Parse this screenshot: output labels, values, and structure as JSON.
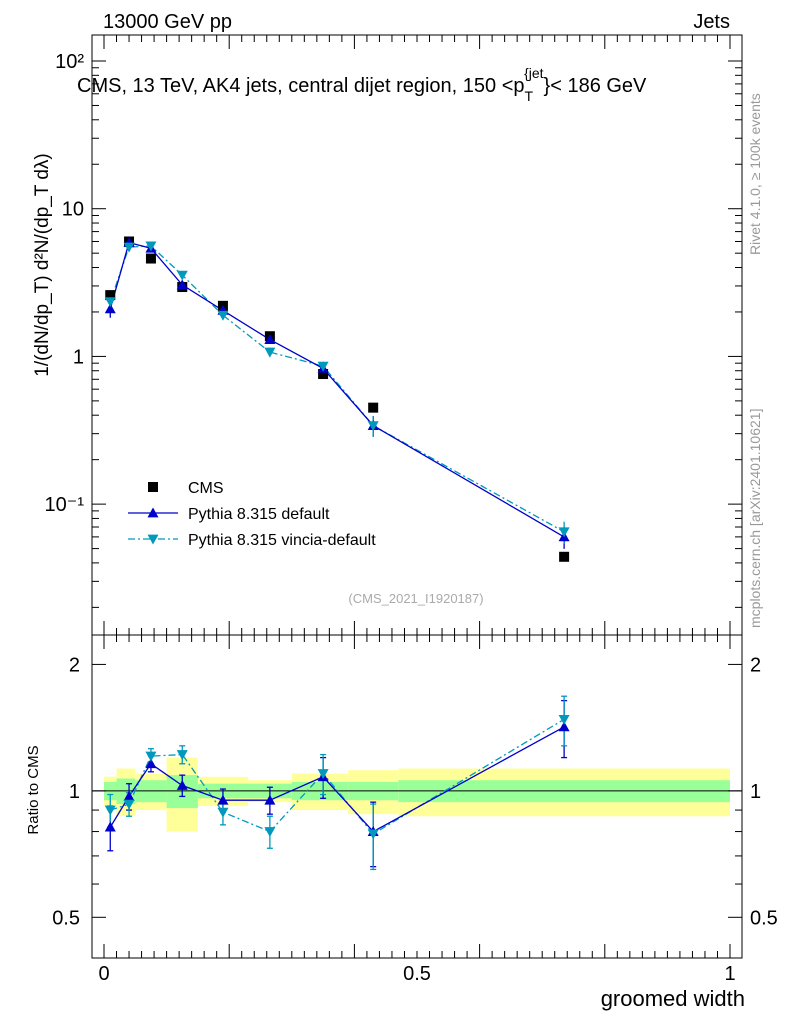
{
  "header": {
    "left": "13000 GeV pp",
    "right": "Jets"
  },
  "side_labels": {
    "rivet": "Rivet 4.1.0, ≥ 100k events",
    "mcplots": "mcplots.cern.ch [arXiv:2401.10621]"
  },
  "chart_data": {
    "type": "scatter",
    "title": "CMS, 13 TeV, AK4 jets, central dijet region, 150 <p_T^{jet}< 186 GeV",
    "title_parts": {
      "main": "CMS, 13 TeV, AK4 jets, central dijet region, 150 <p",
      "sub": "T",
      "sup": "{jet",
      "tail": "}< 186 GeV"
    },
    "analysis_id": "(CMS_2021_I1920187)",
    "xlabel": "groomed width",
    "ylabel_top": "1/(dN/dp_T) d²N/(dp_T dλ)",
    "ylabel_bottom": "Ratio to CMS",
    "xlim": [
      0,
      1
    ],
    "ylim_top": [
      0.013,
      150
    ],
    "ylim_bottom": [
      0.4,
      2.35
    ],
    "y_scale_top": "log",
    "y_scale_bottom": "log",
    "x_ticks": [
      "0",
      "0.5",
      "1"
    ],
    "y_ticks_top": [
      "10⁻¹",
      "1",
      "10",
      "10²"
    ],
    "y_ticks_bottom": [
      "0.5",
      "1",
      "2"
    ],
    "legend": [
      "CMS",
      "Pythia 8.315 default",
      "Pythia 8.315 vincia-default"
    ],
    "legend_position": "lower-left",
    "colors": {
      "cms": "#000000",
      "default": "#0000cc",
      "vincia": "#0099bb",
      "band_inner": "#99ff99",
      "band_outer": "#ffff99"
    },
    "bins": [
      [
        0.0,
        0.02
      ],
      [
        0.02,
        0.05
      ],
      [
        0.05,
        0.1
      ],
      [
        0.1,
        0.15
      ],
      [
        0.15,
        0.23
      ],
      [
        0.23,
        0.3
      ],
      [
        0.3,
        0.39
      ],
      [
        0.39,
        0.47
      ],
      [
        0.47,
        1.0
      ]
    ],
    "x": [
      0.01,
      0.04,
      0.075,
      0.125,
      0.19,
      0.265,
      0.35,
      0.43,
      0.735
    ],
    "series": [
      {
        "name": "CMS",
        "values": [
          2.6,
          6.0,
          4.6,
          2.95,
          2.2,
          1.37,
          0.76,
          0.45,
          0.044
        ],
        "band_inner_rel": [
          0.05,
          0.07,
          0.06,
          0.09,
          0.04,
          0.04,
          0.05,
          0.05,
          0.06
        ],
        "band_outer_rel": [
          0.08,
          0.13,
          0.1,
          0.2,
          0.08,
          0.06,
          0.1,
          0.12,
          0.13
        ]
      },
      {
        "name": "Pythia 8.315 default",
        "values": [
          2.1,
          5.9,
          5.4,
          3.05,
          2.05,
          1.3,
          0.83,
          0.34,
          0.06
        ],
        "errors_rel": [
          0.13,
          0.06,
          0.05,
          0.06,
          0.05,
          0.06,
          0.07,
          0.16,
          0.17
        ],
        "ratio": [
          0.82,
          0.97,
          1.16,
          1.03,
          0.95,
          0.95,
          1.08,
          0.8,
          1.42
        ],
        "ratio_err": [
          0.1,
          0.07,
          0.05,
          0.06,
          0.06,
          0.07,
          0.12,
          0.14,
          0.22
        ]
      },
      {
        "name": "Pythia 8.315 vincia-default",
        "values": [
          2.35,
          5.5,
          5.6,
          3.55,
          1.9,
          1.07,
          0.86,
          0.34,
          0.065
        ],
        "errors_rel": [
          0.13,
          0.05,
          0.05,
          0.05,
          0.06,
          0.07,
          0.07,
          0.16,
          0.17
        ],
        "ratio": [
          0.9,
          0.93,
          1.21,
          1.22,
          0.89,
          0.8,
          1.1,
          0.79,
          1.48
        ],
        "ratio_err": [
          0.08,
          0.06,
          0.05,
          0.06,
          0.06,
          0.07,
          0.12,
          0.14,
          0.2
        ]
      }
    ]
  }
}
